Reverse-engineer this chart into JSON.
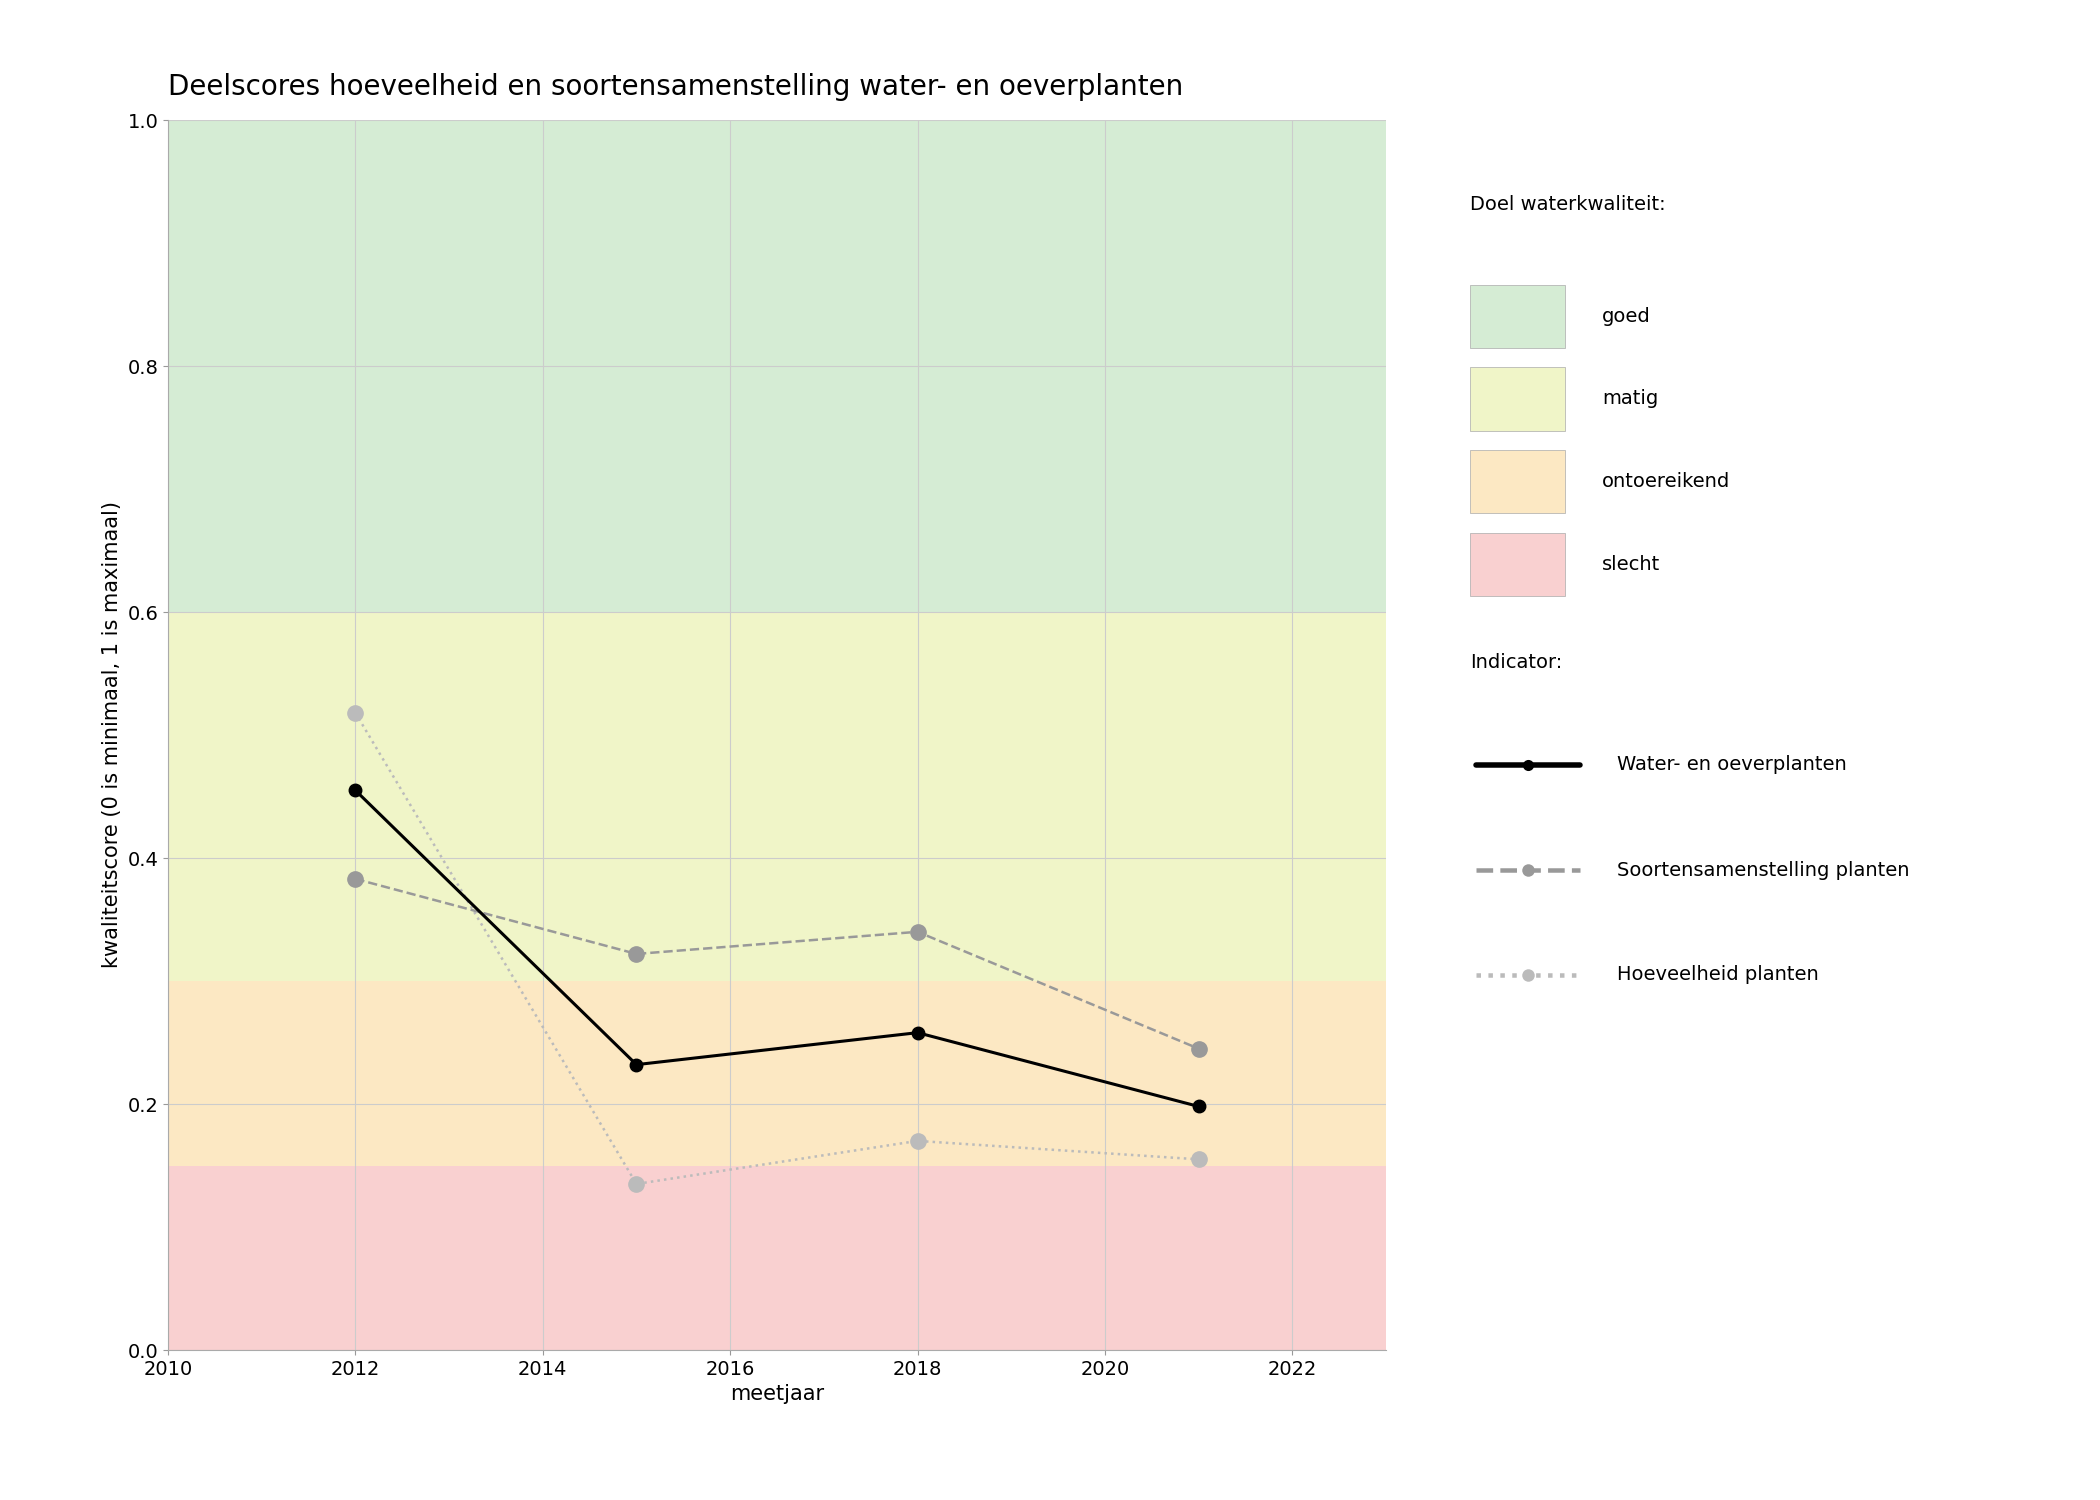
{
  "title": "Deelscores hoeveelheid en soortensamenstelling water- en oeverplanten",
  "xlabel": "meetjaar",
  "ylabel": "kwaliteitscore (0 is minimaal, 1 is maximaal)",
  "xlim": [
    2010,
    2023
  ],
  "ylim": [
    0.0,
    1.0
  ],
  "xticks": [
    2010,
    2012,
    2014,
    2016,
    2018,
    2020,
    2022
  ],
  "yticks": [
    0.0,
    0.2,
    0.4,
    0.6,
    0.8,
    1.0
  ],
  "background_zones": [
    {
      "name": "goed",
      "ymin": 0.6,
      "ymax": 1.0,
      "color": "#d5ecd4"
    },
    {
      "name": "matig",
      "ymin": 0.3,
      "ymax": 0.6,
      "color": "#f0f5c8"
    },
    {
      "name": "ontoereikend",
      "ymin": 0.15,
      "ymax": 0.3,
      "color": "#fce8c3"
    },
    {
      "name": "slecht",
      "ymin": 0.0,
      "ymax": 0.15,
      "color": "#f9d0d0"
    }
  ],
  "series": {
    "water_en_oeverplanten": {
      "x": [
        2012,
        2015,
        2018,
        2021
      ],
      "y": [
        0.455,
        0.232,
        0.258,
        0.198
      ],
      "color": "#000000",
      "linestyle": "solid",
      "linewidth": 2.2,
      "marker": "o",
      "markersize": 9,
      "label": "Water- en oeverplanten"
    },
    "soortensamenstelling": {
      "x": [
        2012,
        2015,
        2018,
        2021
      ],
      "y": [
        0.383,
        0.322,
        0.34,
        0.245
      ],
      "color": "#999999",
      "linestyle": "dashed",
      "linewidth": 1.8,
      "marker": "o",
      "markersize": 11,
      "label": "Soortensamenstelling planten"
    },
    "hoeveelheid": {
      "x": [
        2012,
        2015,
        2018,
        2021
      ],
      "y": [
        0.518,
        0.135,
        0.17,
        0.155
      ],
      "color": "#bbbbbb",
      "linestyle": "dotted",
      "linewidth": 1.8,
      "marker": "o",
      "markersize": 11,
      "label": "Hoeveelheid planten"
    }
  },
  "legend_title_kwaliteit": "Doel waterkwaliteit:",
  "legend_title_indicator": "Indicator:",
  "legend_kwaliteit": [
    {
      "label": "goed",
      "color": "#d5ecd4"
    },
    {
      "label": "matig",
      "color": "#f0f5c8"
    },
    {
      "label": "ontoereikend",
      "color": "#fce8c3"
    },
    {
      "label": "slecht",
      "color": "#f9d0d0"
    }
  ],
  "grid_color": "#cccccc",
  "background_color": "#ffffff",
  "title_fontsize": 20,
  "axis_label_fontsize": 15,
  "tick_fontsize": 14,
  "legend_fontsize": 14
}
